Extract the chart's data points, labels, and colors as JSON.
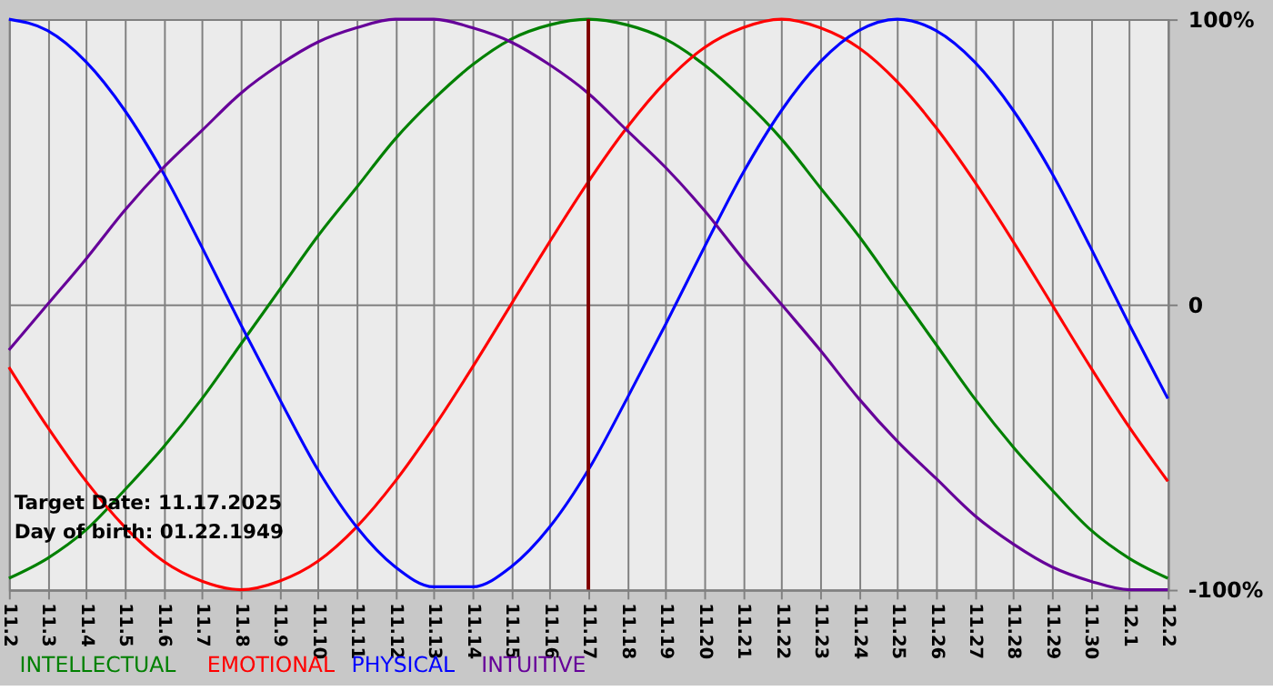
{
  "chart_data": {
    "type": "line",
    "categories": [
      "11.2",
      "11.3",
      "11.4",
      "11.5",
      "11.6",
      "11.7",
      "11.8",
      "11.9",
      "11.10",
      "11.11",
      "11.12",
      "11.13",
      "11.14",
      "11.15",
      "11.16",
      "11.17",
      "11.18",
      "11.19",
      "11.20",
      "11.21",
      "11.22",
      "11.23",
      "11.24",
      "11.25",
      "11.26",
      "11.27",
      "11.28",
      "11.29",
      "11.30",
      "12.1",
      "12.2"
    ],
    "series": [
      {
        "name": "INTELLECTUAL",
        "color": "#008000",
        "values": [
          -96,
          -89,
          -79,
          -65,
          -50,
          -33,
          -14,
          5,
          24,
          41,
          58,
          72,
          84,
          93,
          98,
          100,
          98,
          93,
          84,
          72,
          58,
          41,
          24,
          5,
          -14,
          -33,
          -50,
          -65,
          -79,
          -89,
          -96
        ]
      },
      {
        "name": "EMOTIONAL",
        "color": "#ff0000",
        "values": [
          -22,
          -43,
          -62,
          -78,
          -90,
          -97,
          -100,
          -97,
          -90,
          -78,
          -62,
          -43,
          -22,
          0,
          22,
          43,
          62,
          78,
          90,
          97,
          100,
          97,
          90,
          78,
          62,
          43,
          22,
          0,
          -22,
          -43,
          -62
        ]
      },
      {
        "name": "PHYSICAL",
        "color": "#0000ff",
        "values": [
          100,
          96,
          85,
          68,
          46,
          20,
          -7,
          -33,
          -58,
          -78,
          -92,
          -99,
          -99,
          -92,
          -78,
          -58,
          -33,
          -7,
          20,
          46,
          68,
          85,
          96,
          100,
          96,
          85,
          68,
          46,
          20,
          -7,
          -33
        ]
      },
      {
        "name": "INTUITIVE",
        "color": "#660099",
        "values": [
          -16,
          0,
          16,
          33,
          48,
          61,
          74,
          84,
          92,
          97,
          100,
          100,
          97,
          92,
          84,
          74,
          61,
          48,
          33,
          16,
          0,
          -16,
          -33,
          -48,
          -61,
          -74,
          -84,
          -92,
          -97,
          -100,
          -100
        ]
      }
    ],
    "ylim": [
      -100,
      100
    ],
    "yticks": [
      {
        "value": -100,
        "label": "-100%"
      },
      0,
      {
        "value": 100,
        "label": "100%"
      }
    ],
    "ref_lines": [
      {
        "axis": "x",
        "value": "11.17",
        "color": "#800000"
      }
    ],
    "annotations": [
      "Target Date: 11.17.2025",
      "Day of birth: 01.22.1949"
    ],
    "grid": true,
    "legend": "bottom"
  }
}
